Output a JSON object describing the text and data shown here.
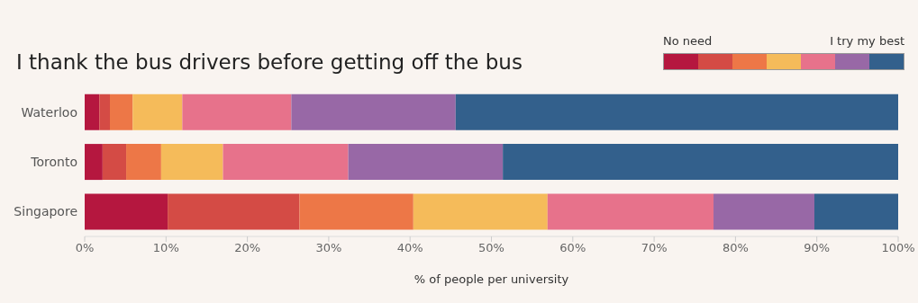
{
  "chart_data": {
    "type": "bar",
    "orientation": "horizontal",
    "stacked": true,
    "title": "I thank the bus drivers before getting off the bus",
    "xlabel": "% of people per university",
    "categories": [
      "Waterloo",
      "Toronto",
      "Singapore"
    ],
    "series": [
      {
        "color": "#b5173f",
        "values": [
          1.8,
          2.2,
          10.2
        ]
      },
      {
        "color": "#d44b45",
        "values": [
          1.3,
          2.9,
          16.2
        ]
      },
      {
        "color": "#ed7747",
        "values": [
          2.8,
          4.3,
          14.0
        ]
      },
      {
        "color": "#f5bb5a",
        "values": [
          6.1,
          7.6,
          16.5
        ]
      },
      {
        "color": "#e7728b",
        "values": [
          13.4,
          15.4,
          20.4
        ]
      },
      {
        "color": "#9868a6",
        "values": [
          20.2,
          19.0,
          12.4
        ]
      },
      {
        "color": "#33608c",
        "values": [
          54.4,
          48.6,
          10.3
        ]
      }
    ],
    "xlim": [
      0,
      100
    ],
    "xticks": [
      {
        "value": 0,
        "label": "0%"
      },
      {
        "value": 10,
        "label": "10%"
      },
      {
        "value": 20,
        "label": "20%"
      },
      {
        "value": 30,
        "label": "30%"
      },
      {
        "value": 40,
        "label": "40%"
      },
      {
        "value": 50,
        "label": "50%"
      },
      {
        "value": 60,
        "label": "60%"
      },
      {
        "value": 70,
        "label": "70%"
      },
      {
        "value": 80,
        "label": "80%"
      },
      {
        "value": 90,
        "label": "90%"
      },
      {
        "value": 100,
        "label": "100%"
      }
    ],
    "annotations": [
      "No need",
      "I try my best"
    ]
  }
}
